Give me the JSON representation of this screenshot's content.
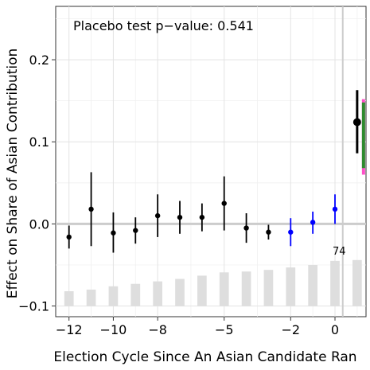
{
  "chart_data": {
    "type": "scatter",
    "xlabel": "Election Cycle Since An Asian Candidate Ran",
    "ylabel": "Effect on Share of Asian Contribution",
    "annotation": "Placebo test p−value: 0.541",
    "count_label": "74",
    "xlim": [
      -12.6,
      1.4
    ],
    "ylim": [
      -0.113,
      0.265
    ],
    "x_ticks": [
      -12,
      -10,
      -8,
      -5,
      -2,
      0
    ],
    "x_tick_labels": [
      "−12",
      "−10",
      "−8",
      "−5",
      "−2",
      "0"
    ],
    "y_ticks": [
      -0.1,
      0.0,
      0.1,
      0.2
    ],
    "y_tick_labels": [
      "−0.1",
      "0.0",
      "0.1",
      "0.2"
    ],
    "grid": true,
    "reference_hline": 0.0,
    "reference_vline": 0.35,
    "series_colors": {
      "pre": "#000000",
      "near": "#0000ff",
      "post": "#000000"
    },
    "estimates": [
      {
        "x": -12,
        "y": -0.016,
        "lo": -0.03,
        "hi": -0.002,
        "group": "pre"
      },
      {
        "x": -11,
        "y": 0.018,
        "lo": -0.027,
        "hi": 0.063,
        "group": "pre"
      },
      {
        "x": -10,
        "y": -0.011,
        "lo": -0.035,
        "hi": 0.014,
        "group": "pre"
      },
      {
        "x": -9,
        "y": -0.008,
        "lo": -0.024,
        "hi": 0.008,
        "group": "pre"
      },
      {
        "x": -8,
        "y": 0.01,
        "lo": -0.016,
        "hi": 0.036,
        "group": "pre"
      },
      {
        "x": -7,
        "y": 0.008,
        "lo": -0.012,
        "hi": 0.028,
        "group": "pre"
      },
      {
        "x": -6,
        "y": 0.008,
        "lo": -0.009,
        "hi": 0.025,
        "group": "pre"
      },
      {
        "x": -5,
        "y": 0.025,
        "lo": -0.008,
        "hi": 0.058,
        "group": "pre"
      },
      {
        "x": -4,
        "y": -0.005,
        "lo": -0.023,
        "hi": 0.013,
        "group": "pre"
      },
      {
        "x": -3,
        "y": -0.01,
        "lo": -0.019,
        "hi": -0.001,
        "group": "pre"
      },
      {
        "x": -2,
        "y": -0.01,
        "lo": -0.027,
        "hi": 0.007,
        "group": "near"
      },
      {
        "x": -1,
        "y": 0.002,
        "lo": -0.012,
        "hi": 0.015,
        "group": "near"
      },
      {
        "x": 0,
        "y": 0.018,
        "lo": 0.0,
        "hi": 0.036,
        "group": "near"
      },
      {
        "x": 1,
        "y": 0.124,
        "lo": 0.086,
        "hi": 0.163,
        "group": "post"
      }
    ],
    "robust_interval": {
      "x": 1,
      "green": [
        0.068,
        0.148
      ],
      "magenta": [
        0.06,
        0.152
      ]
    },
    "counts": {
      "baseline": -0.1,
      "bars": [
        {
          "x": -12,
          "top": -0.082
        },
        {
          "x": -11,
          "top": -0.08
        },
        {
          "x": -10,
          "top": -0.076
        },
        {
          "x": -9,
          "top": -0.073
        },
        {
          "x": -8,
          "top": -0.07
        },
        {
          "x": -7,
          "top": -0.067
        },
        {
          "x": -6,
          "top": -0.063
        },
        {
          "x": -5,
          "top": -0.059
        },
        {
          "x": -4,
          "top": -0.058
        },
        {
          "x": -3,
          "top": -0.056
        },
        {
          "x": -2,
          "top": -0.053
        },
        {
          "x": -1,
          "top": -0.05
        },
        {
          "x": 0,
          "top": -0.045
        },
        {
          "x": 1,
          "top": -0.044
        }
      ]
    }
  }
}
